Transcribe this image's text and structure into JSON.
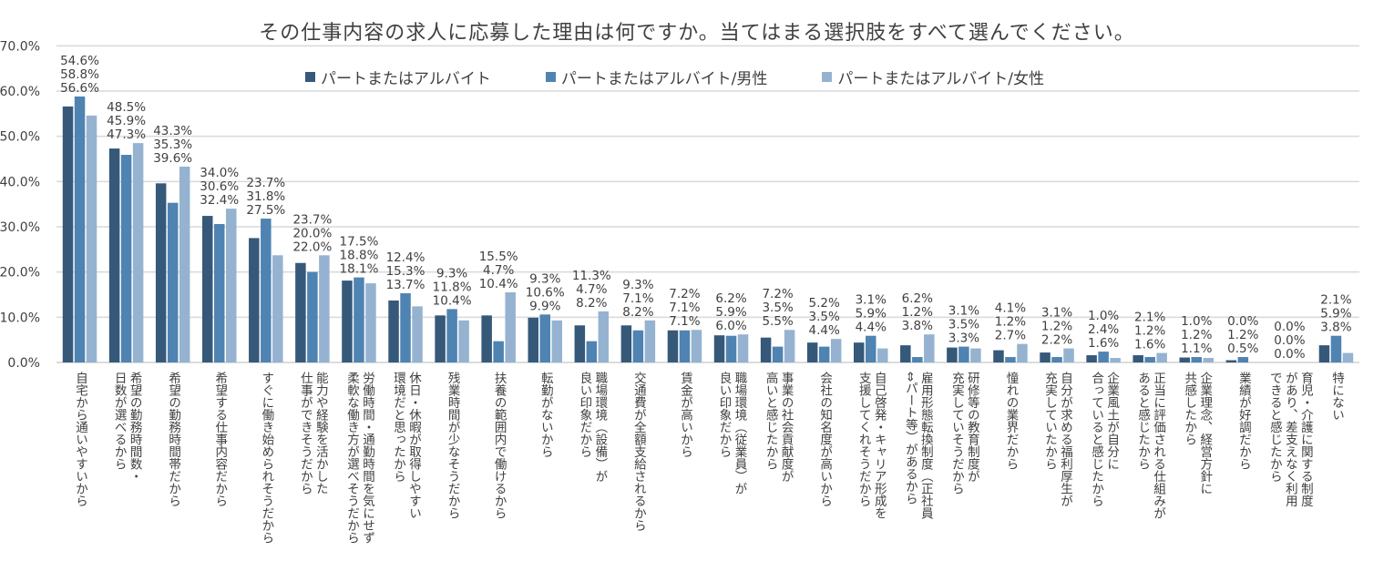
{
  "chart_data": {
    "type": "bar",
    "title": "その仕事内容の求人に応募した理由は何ですか。当てはまる選択肢をすべて選んでください。",
    "ylim": [
      0,
      70
    ],
    "yticks": [
      "0.0%",
      "10.0%",
      "20.0%",
      "30.0%",
      "40.0%",
      "50.0%",
      "60.0%",
      "70.0%"
    ],
    "grid": true,
    "legend_position": "top",
    "colors": [
      "#36597a",
      "#4f83b2",
      "#95b3d0"
    ],
    "categories": [
      "自宅から通いやすいから",
      "希望の勤務時間数・\n日数が選べるから",
      "希望の勤務時間帯だから",
      "希望する仕事内容だから",
      "すぐに働き始められそうだから",
      "能力や経験を活かした\n仕事ができそうだから",
      "労働時間・通勤時間を気にせず\n柔軟な働き方が選べそうだから",
      "休日・休暇が取得しやすい\n環境だと思ったから",
      "残業時間が少なそうだから",
      "扶養の範囲内で働けるから",
      "転勤がないから",
      "職場環境（設備）が\n良い印象だから",
      "交通費が全額支給されるから",
      "賃金が高いから",
      "職場環境（従業員）が\n良い印象だから",
      "事業の社会貢献度が\n高いと感じたから",
      "会社の知名度が高いから",
      "自己啓発・キャリア形成を\n支援してくれそうだから",
      "雇用形態転換制度（正社員\n⇔パート等）があるから",
      "研修等の教育制度が\n充実していそうだから",
      "憧れの業界だから",
      "自分が求める福利厚生が\n充実していたから",
      "企業風土が自分に\n合っていると感じたから",
      "正当に評価される仕組みが\nあると感じたから",
      "企業理念、経営方針に\n共感したから",
      "業績が好調だから",
      "育児・介護に関する制度\nがあり、差支えなく利用\nできると感じたから",
      "特にない"
    ],
    "series": [
      {
        "name": "パートまたはアルバイト",
        "values": [
          56.6,
          47.3,
          39.6,
          32.4,
          27.5,
          22.0,
          18.1,
          13.7,
          10.4,
          10.4,
          9.9,
          8.2,
          8.2,
          7.1,
          6.0,
          5.5,
          4.4,
          4.4,
          3.8,
          3.3,
          2.7,
          2.2,
          1.6,
          1.6,
          1.1,
          0.5,
          0.0,
          3.8
        ]
      },
      {
        "name": "パートまたはアルバイト/男性",
        "values": [
          58.8,
          45.9,
          35.3,
          30.6,
          31.8,
          20.0,
          18.8,
          15.3,
          11.8,
          4.7,
          10.6,
          4.7,
          7.1,
          7.1,
          5.9,
          3.5,
          3.5,
          5.9,
          1.2,
          3.5,
          1.2,
          1.2,
          2.4,
          1.2,
          1.2,
          1.2,
          0.0,
          5.9
        ]
      },
      {
        "name": "パートまたはアルバイト/女性",
        "values": [
          54.6,
          48.5,
          43.3,
          34.0,
          23.7,
          23.7,
          17.5,
          12.4,
          9.3,
          15.5,
          9.3,
          11.3,
          9.3,
          7.2,
          6.2,
          7.2,
          5.2,
          3.1,
          6.2,
          3.1,
          4.1,
          3.1,
          1.0,
          2.1,
          1.0,
          0.0,
          0.0,
          2.1
        ]
      }
    ]
  }
}
